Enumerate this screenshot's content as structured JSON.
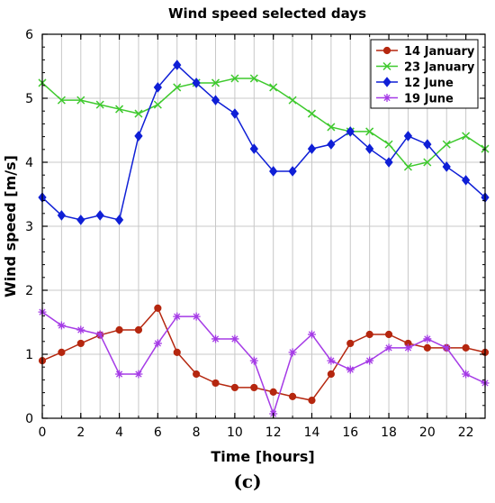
{
  "caption": "(c)",
  "chart_data": {
    "type": "line",
    "title": "Wind speed selected days",
    "xlabel": "Time [hours]",
    "ylabel": "Wind speed [m/s]",
    "xlim": [
      0,
      23
    ],
    "ylim": [
      0,
      6
    ],
    "xticks": [
      0,
      2,
      4,
      6,
      8,
      10,
      12,
      14,
      16,
      18,
      20,
      22
    ],
    "yticks": [
      0,
      1,
      2,
      3,
      4,
      5,
      6
    ],
    "grid": true,
    "legend_position": "top-right",
    "x": [
      0,
      1,
      2,
      3,
      4,
      5,
      6,
      7,
      8,
      9,
      10,
      11,
      12,
      13,
      14,
      15,
      16,
      17,
      18,
      19,
      20,
      21,
      22,
      23
    ],
    "series": [
      {
        "name": "14 January",
        "color": "#b5270f",
        "marker": "circle",
        "values": [
          0.9,
          1.03,
          1.17,
          1.3,
          1.38,
          1.38,
          1.72,
          1.03,
          0.69,
          0.55,
          0.48,
          0.48,
          0.41,
          0.34,
          0.28,
          0.69,
          1.17,
          1.31,
          1.31,
          1.17,
          1.1,
          1.1,
          1.1,
          1.03
        ]
      },
      {
        "name": "23 January",
        "color": "#3ec92d",
        "marker": "x",
        "values": [
          5.24,
          4.97,
          4.97,
          4.9,
          4.83,
          4.76,
          4.9,
          5.17,
          5.24,
          5.24,
          5.31,
          5.31,
          5.17,
          4.97,
          4.76,
          4.55,
          4.48,
          4.48,
          4.28,
          3.93,
          4.0,
          4.28,
          4.41,
          4.21
        ]
      },
      {
        "name": "12 June",
        "color": "#0f1fd6",
        "marker": "diamond",
        "values": [
          3.45,
          3.17,
          3.1,
          3.17,
          3.1,
          4.41,
          5.17,
          5.52,
          5.24,
          4.97,
          4.76,
          4.21,
          3.86,
          3.86,
          4.21,
          4.28,
          4.48,
          4.21,
          4.0,
          4.41,
          4.28,
          3.93,
          3.72,
          3.45
        ]
      },
      {
        "name": "19 June",
        "color": "#a53be6",
        "marker": "star",
        "values": [
          1.66,
          1.45,
          1.38,
          1.31,
          0.69,
          0.69,
          1.17,
          1.59,
          1.59,
          1.24,
          1.24,
          0.9,
          0.07,
          1.03,
          1.31,
          0.9,
          0.76,
          0.9,
          1.1,
          1.1,
          1.24,
          1.1,
          0.69,
          0.55
        ]
      }
    ]
  }
}
